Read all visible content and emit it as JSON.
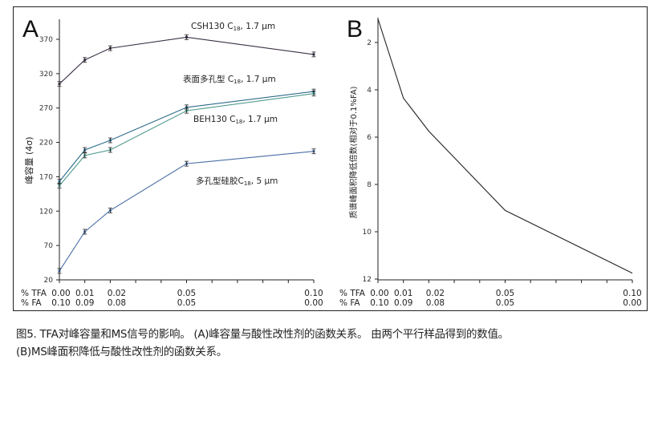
{
  "chart_data": [
    {
      "type": "line",
      "panel": "A",
      "title": "",
      "ylabel": "峰容量 (4σ)",
      "xlabel_rows": [
        {
          "label": "% TFA",
          "ticks": [
            "0.00",
            "0.01",
            "0.02",
            "0.05",
            "0.10"
          ]
        },
        {
          "label": "% FA",
          "ticks": [
            "0.10",
            "0.09",
            "0.08",
            "0.05",
            "0.00"
          ]
        }
      ],
      "x": [
        0.0,
        0.01,
        0.02,
        0.05,
        0.1
      ],
      "xlim": [
        0.0,
        0.1
      ],
      "ylim": [
        20,
        395
      ],
      "yticks": [
        20,
        70,
        120,
        170,
        220,
        270,
        320,
        370
      ],
      "grid": false,
      "series": [
        {
          "name": "CSH130 C18, 1.7 μm",
          "label_main": "CSH130 C",
          "label_sub": "18",
          "label_tail": ", 1.7 μm",
          "color": "#3a2f45",
          "values": [
            305,
            340,
            357,
            373,
            348
          ],
          "error_bars": true
        },
        {
          "name": "表面多孔型 C18, 1.7 μm",
          "label_main": "表面多孔型 C",
          "label_sub": "18",
          "label_tail": ", 1.7 μm",
          "color": "#2d6a8a",
          "values": [
            163,
            209,
            223,
            271,
            294
          ],
          "error_bars": true
        },
        {
          "name": "BEH130 C18, 1.7 μm",
          "label_main": "BEH130 C",
          "label_sub": "18",
          "label_tail": ", 1.7 μm",
          "color": "#4f9a8e",
          "values": [
            157,
            201,
            209,
            266,
            291
          ],
          "error_bars": true
        },
        {
          "name": "多孔型硅胶C18, 5 μm",
          "label_main": "多孔型硅胶C",
          "label_sub": "18",
          "label_tail": ", 5 μm",
          "color": "#4a6fa5",
          "values": [
            33,
            90,
            121,
            189,
            207
          ],
          "error_bars": true
        }
      ]
    },
    {
      "type": "line",
      "panel": "B",
      "title": "",
      "ylabel": "质谱峰面积降低倍数(相对于0.1%FA)",
      "xlabel_rows": [
        {
          "label": "% TFA",
          "ticks": [
            "0.00",
            "0.01",
            "0.02",
            "0.05",
            "0.10"
          ]
        },
        {
          "label": "% FA",
          "ticks": [
            "0.10",
            "0.09",
            "0.08",
            "0.05",
            "0.00"
          ]
        }
      ],
      "x": [
        0.0,
        0.01,
        0.02,
        0.05,
        0.1
      ],
      "xlim": [
        0.0,
        0.1
      ],
      "ylim": [
        1,
        12
      ],
      "y_inverted": true,
      "yticks": [
        2,
        4,
        6,
        8,
        10,
        12
      ],
      "grid": false,
      "series": [
        {
          "name": "MS peak area reduction",
          "color": "#222222",
          "values": [
            1.0,
            4.35,
            5.75,
            9.1,
            11.75
          ]
        }
      ]
    }
  ],
  "caption": {
    "line1": "图5. TFA对峰容量和MS信号的影响。 (A)峰容量与酸性改性剂的函数关系。 由两个平行样品得到的数值。",
    "line2": "(B)MS峰面积降低与酸性改性剂的函数关系。"
  }
}
